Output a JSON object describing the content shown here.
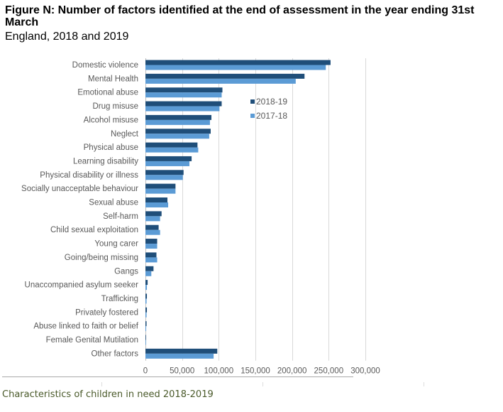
{
  "chart_data": {
    "type": "bar",
    "orientation": "horizontal",
    "title": "Figure N: Number of factors identified at the end of assessment in the year ending 31st March",
    "subtitle": "England, 2018 and 2019",
    "xlabel": "",
    "ylabel": "",
    "xlim": [
      0,
      300000
    ],
    "xticks": [
      0,
      50000,
      100000,
      150000,
      200000,
      250000,
      300000
    ],
    "xtick_labels": [
      "0",
      "50,000",
      "100,000",
      "150,000",
      "200,000",
      "250,000",
      "300,000"
    ],
    "grid": true,
    "legend_position": "right-inside",
    "categories": [
      "Domestic violence",
      "Mental Health",
      "Emotional abuse",
      "Drug misuse",
      "Alcohol misuse",
      "Neglect",
      "Physical abuse",
      "Learning disability",
      "Physical disability or illness",
      "Socially unacceptable behaviour",
      "Sexual abuse",
      "Self-harm",
      "Child sexual exploitation",
      "Young carer",
      "Going/being missing",
      "Gangs",
      "Unaccompanied asylum seeker",
      "Trafficking",
      "Privately fostered",
      "Abuse linked to faith or belief",
      "Female Genital Mutilation",
      "Other factors"
    ],
    "series": [
      {
        "name": "2018-19",
        "color": "#1f4e79",
        "values": [
          252500,
          217000,
          105000,
          104000,
          90000,
          89000,
          71000,
          63000,
          52000,
          41000,
          30000,
          22000,
          18000,
          16000,
          15000,
          11000,
          3000,
          2000,
          2000,
          1500,
          500,
          98000
        ]
      },
      {
        "name": "2017-18",
        "color": "#5b9bd5",
        "values": [
          246000,
          205000,
          104000,
          101000,
          88000,
          87000,
          72000,
          60000,
          51000,
          41000,
          31000,
          20000,
          20000,
          16000,
          16000,
          8000,
          2000,
          1500,
          1500,
          1000,
          500,
          93000
        ]
      }
    ]
  },
  "footer": {
    "caption": "Characteristics of children in need 2018-2019"
  }
}
